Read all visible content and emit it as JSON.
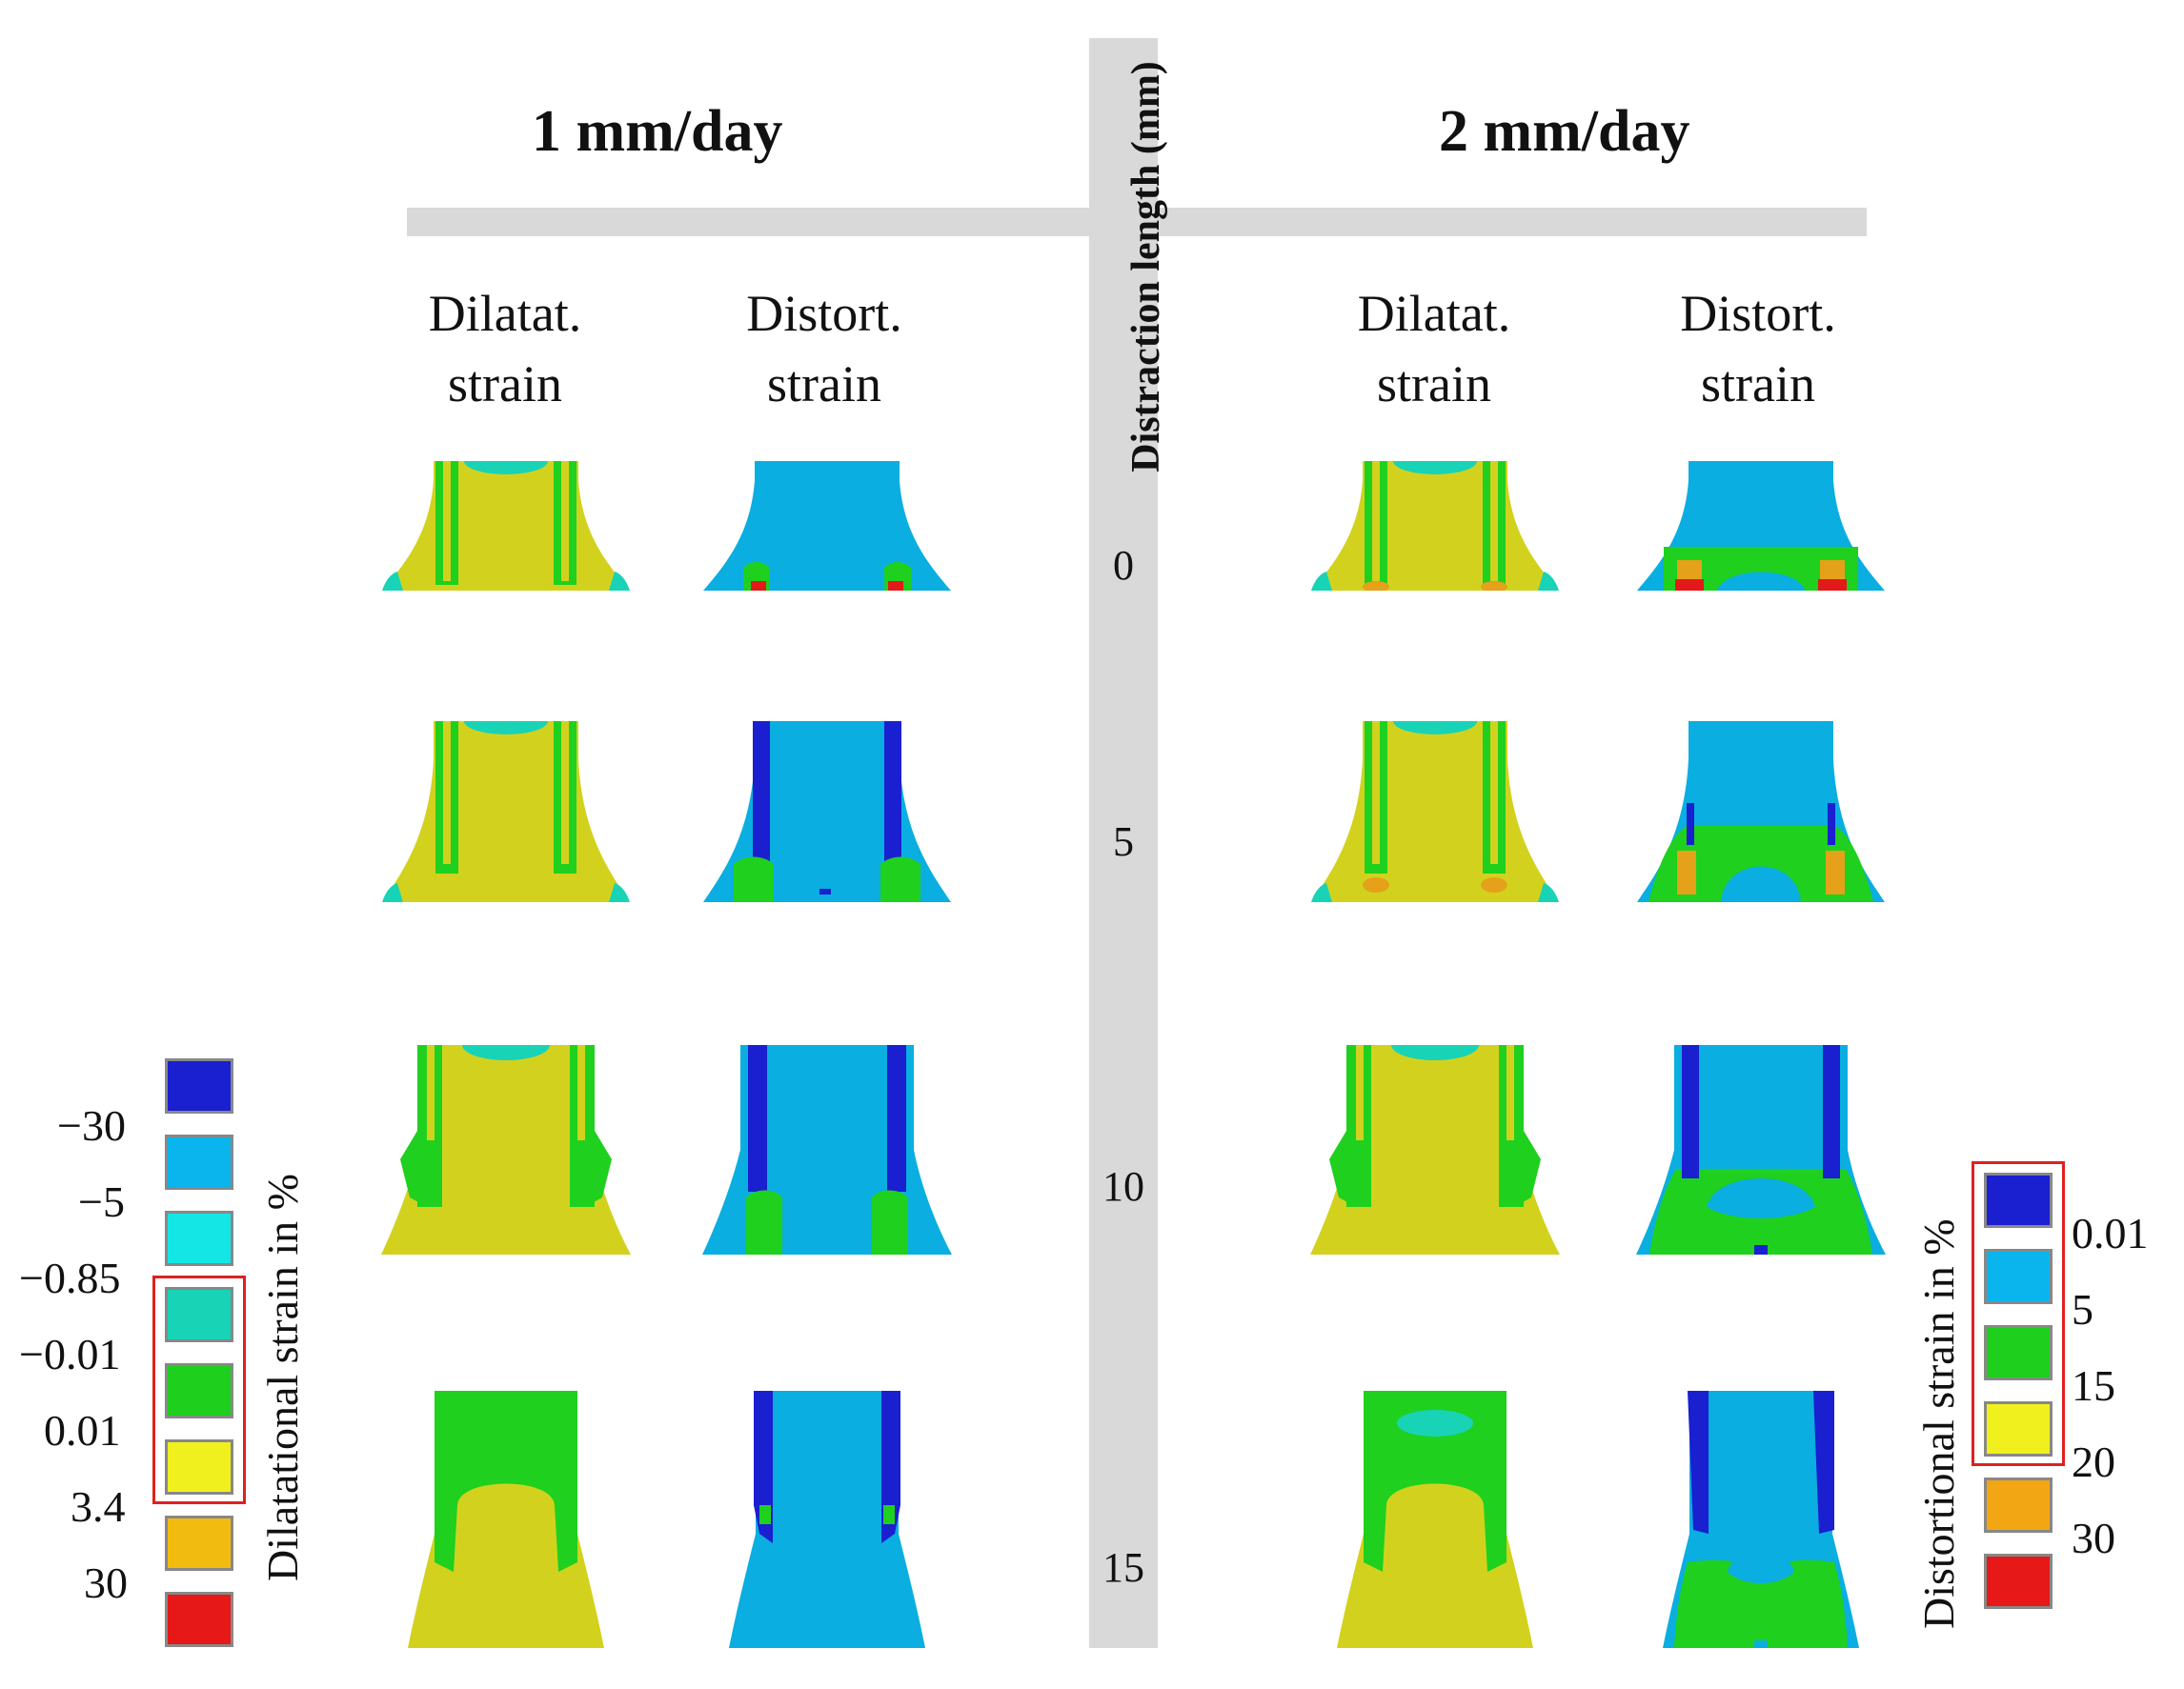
{
  "headers": {
    "left_rate": "1 mm/day",
    "right_rate": "2 mm/day",
    "axis_title": "Distraction length (mm)",
    "col_dilat_1": "Dilatat.",
    "col_dilat_2": "strain",
    "col_distort_1": "Distort.",
    "col_distort_2": "strain"
  },
  "rows": [
    "0",
    "5",
    "10",
    "15"
  ],
  "colors": {
    "dark_blue": "#1a1fd0",
    "light_blue": "#0aaee0",
    "cyan": "#19d8e0",
    "teal": "#19d3b6",
    "green": "#1fd01f",
    "yellow": "#d2d21e",
    "orange": "#e4a119",
    "red": "#e21a1a",
    "bar_gray": "#d9d9d9"
  },
  "legend_left": {
    "title": "Dilatational strain in %",
    "ticks": [
      "−30",
      "−5",
      "−0.85",
      "−0.01",
      "0.01",
      "3.4",
      "30"
    ],
    "swatches": [
      "#1a1fd0",
      "#0ab4ec",
      "#14e6e6",
      "#19d3b6",
      "#1ecf1e",
      "#f0f01e",
      "#f2bb10",
      "#e61818"
    ]
  },
  "legend_right": {
    "title": "Distortional strain in %",
    "ticks": [
      "0.01",
      "5",
      "15",
      "20",
      "30"
    ],
    "swatches": [
      "#1a1fd0",
      "#0ab4ec",
      "#1ecf1e",
      "#f0f01e",
      "#f2a614",
      "#e61818"
    ]
  }
}
